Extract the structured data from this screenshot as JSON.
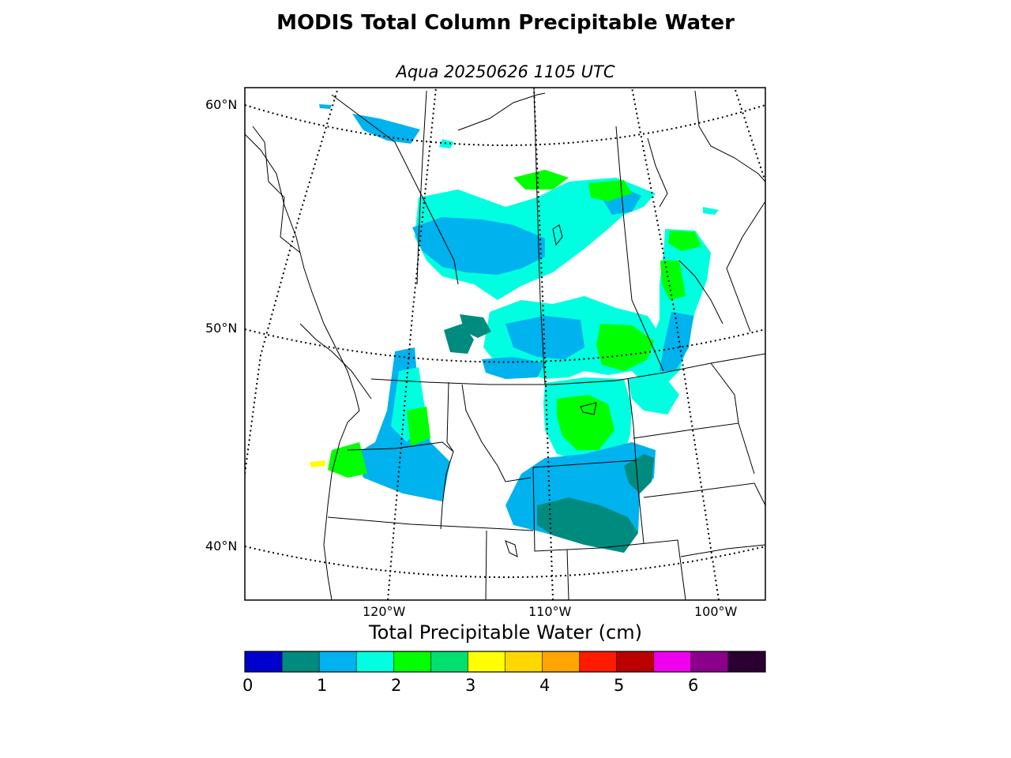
{
  "title": "MODIS Total Column Precipitable Water",
  "subtitle": "Aqua 20250626 1105 UTC",
  "map": {
    "lat_labels": [
      "60°N",
      "50°N",
      "40°N"
    ],
    "lon_labels": [
      "120°W",
      "110°W",
      "100°W"
    ]
  },
  "colorbar": {
    "title": "Total Precipitable Water (cm)",
    "tick_labels": [
      "0",
      "1",
      "2",
      "3",
      "4",
      "5",
      "6"
    ],
    "colors": [
      "#0000cd",
      "#008b7f",
      "#00b2ee",
      "#00ffe0",
      "#00ff00",
      "#00e070",
      "#ffff00",
      "#ffd700",
      "#ffa500",
      "#ff1a00",
      "#bb0000",
      "#ee00ee",
      "#8b008b",
      "#2a0030"
    ]
  },
  "colors": {
    "c1": "#008b7f",
    "c1_5": "#00b2ee",
    "c2": "#00ffe0",
    "c2_5": "#00ff00",
    "c3": "#ffff00"
  }
}
